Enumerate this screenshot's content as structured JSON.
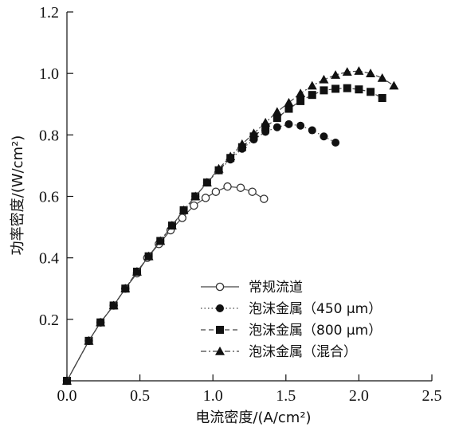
{
  "chart_data": {
    "type": "line",
    "xlabel": "电流密度/(A/cm²)",
    "ylabel": "功率密度/(W/cm²)",
    "xlim": [
      0.0,
      2.5
    ],
    "ylim": [
      0.0,
      1.2
    ],
    "xticks": [
      "0.0",
      "0.5",
      "1.0",
      "1.5",
      "2.0",
      "2.5"
    ],
    "yticks": [
      "0.2",
      "0.4",
      "0.6",
      "0.8",
      "1.0",
      "1.2"
    ],
    "grid": false,
    "legend_position": "lower-right",
    "series": [
      {
        "name": "常规流道",
        "marker": "open-circle",
        "line_style": "solid",
        "x": [
          0.0,
          0.15,
          0.23,
          0.32,
          0.4,
          0.48,
          0.55,
          0.63,
          0.71,
          0.79,
          0.87,
          0.95,
          1.02,
          1.1,
          1.19,
          1.27,
          1.35
        ],
        "y": [
          0.0,
          0.13,
          0.19,
          0.245,
          0.3,
          0.35,
          0.4,
          0.445,
          0.49,
          0.53,
          0.57,
          0.595,
          0.615,
          0.632,
          0.628,
          0.615,
          0.592
        ]
      },
      {
        "name": "泡沫金属（450 μm）",
        "marker": "filled-circle",
        "line_style": "dotted",
        "x": [
          0.0,
          0.15,
          0.23,
          0.32,
          0.4,
          0.48,
          0.56,
          0.64,
          0.72,
          0.8,
          0.88,
          0.96,
          1.04,
          1.12,
          1.2,
          1.28,
          1.36,
          1.44,
          1.52,
          1.6,
          1.68,
          1.76,
          1.84
        ],
        "y": [
          0.0,
          0.13,
          0.19,
          0.245,
          0.3,
          0.355,
          0.405,
          0.455,
          0.505,
          0.555,
          0.6,
          0.645,
          0.685,
          0.72,
          0.755,
          0.785,
          0.81,
          0.825,
          0.835,
          0.83,
          0.815,
          0.795,
          0.775
        ]
      },
      {
        "name": "泡沫金属（800 μm）",
        "marker": "filled-square",
        "line_style": "dashed",
        "x": [
          0.0,
          0.15,
          0.23,
          0.32,
          0.4,
          0.48,
          0.56,
          0.64,
          0.72,
          0.8,
          0.88,
          0.96,
          1.04,
          1.12,
          1.2,
          1.28,
          1.36,
          1.44,
          1.52,
          1.6,
          1.68,
          1.76,
          1.84,
          1.92,
          2.0,
          2.08,
          2.16
        ],
        "y": [
          0.0,
          0.13,
          0.19,
          0.245,
          0.3,
          0.355,
          0.405,
          0.455,
          0.505,
          0.555,
          0.6,
          0.645,
          0.685,
          0.725,
          0.76,
          0.795,
          0.825,
          0.855,
          0.885,
          0.91,
          0.93,
          0.945,
          0.95,
          0.952,
          0.948,
          0.94,
          0.92
        ]
      },
      {
        "name": "泡沫金属（混合）",
        "marker": "filled-triangle",
        "line_style": "dash-dot",
        "x": [
          0.0,
          0.15,
          0.23,
          0.32,
          0.4,
          0.48,
          0.56,
          0.64,
          0.72,
          0.8,
          0.88,
          0.96,
          1.04,
          1.12,
          1.2,
          1.28,
          1.36,
          1.44,
          1.52,
          1.6,
          1.68,
          1.76,
          1.84,
          1.92,
          2.0,
          2.08,
          2.16,
          2.24
        ],
        "y": [
          0.0,
          0.13,
          0.19,
          0.245,
          0.3,
          0.355,
          0.405,
          0.455,
          0.505,
          0.555,
          0.6,
          0.645,
          0.69,
          0.73,
          0.77,
          0.805,
          0.84,
          0.875,
          0.905,
          0.935,
          0.96,
          0.98,
          0.995,
          1.005,
          1.008,
          1.0,
          0.985,
          0.96
        ]
      }
    ]
  }
}
